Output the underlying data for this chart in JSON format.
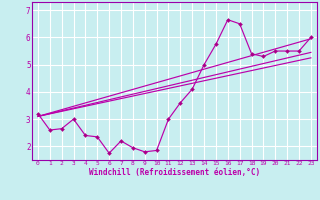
{
  "xlabel": "Windchill (Refroidissement éolien,°C)",
  "background_color": "#c8eef0",
  "grid_color": "#ffffff",
  "line_color": "#bb00aa",
  "marker_color": "#aa0088",
  "xlim": [
    -0.5,
    23.5
  ],
  "ylim": [
    1.5,
    7.3
  ],
  "yticks": [
    2,
    3,
    4,
    5,
    6,
    7
  ],
  "xticks": [
    0,
    1,
    2,
    3,
    4,
    5,
    6,
    7,
    8,
    9,
    10,
    11,
    12,
    13,
    14,
    15,
    16,
    17,
    18,
    19,
    20,
    21,
    22,
    23
  ],
  "main_x": [
    0,
    1,
    2,
    3,
    4,
    5,
    6,
    7,
    8,
    9,
    10,
    11,
    12,
    13,
    14,
    15,
    16,
    17,
    18,
    19,
    20,
    21,
    22,
    23
  ],
  "main_y": [
    3.2,
    2.6,
    2.65,
    3.0,
    2.4,
    2.35,
    1.75,
    2.2,
    1.95,
    1.8,
    1.85,
    3.0,
    3.6,
    4.1,
    5.0,
    5.75,
    6.65,
    6.5,
    5.4,
    5.3,
    5.5,
    5.5,
    5.5,
    6.0
  ],
  "line1_x": [
    0,
    23
  ],
  "line1_y": [
    3.1,
    5.25
  ],
  "line2_x": [
    0,
    23
  ],
  "line2_y": [
    3.1,
    5.45
  ],
  "line3_x": [
    0,
    23
  ],
  "line3_y": [
    3.1,
    5.95
  ],
  "spine_color": "#9900aa"
}
